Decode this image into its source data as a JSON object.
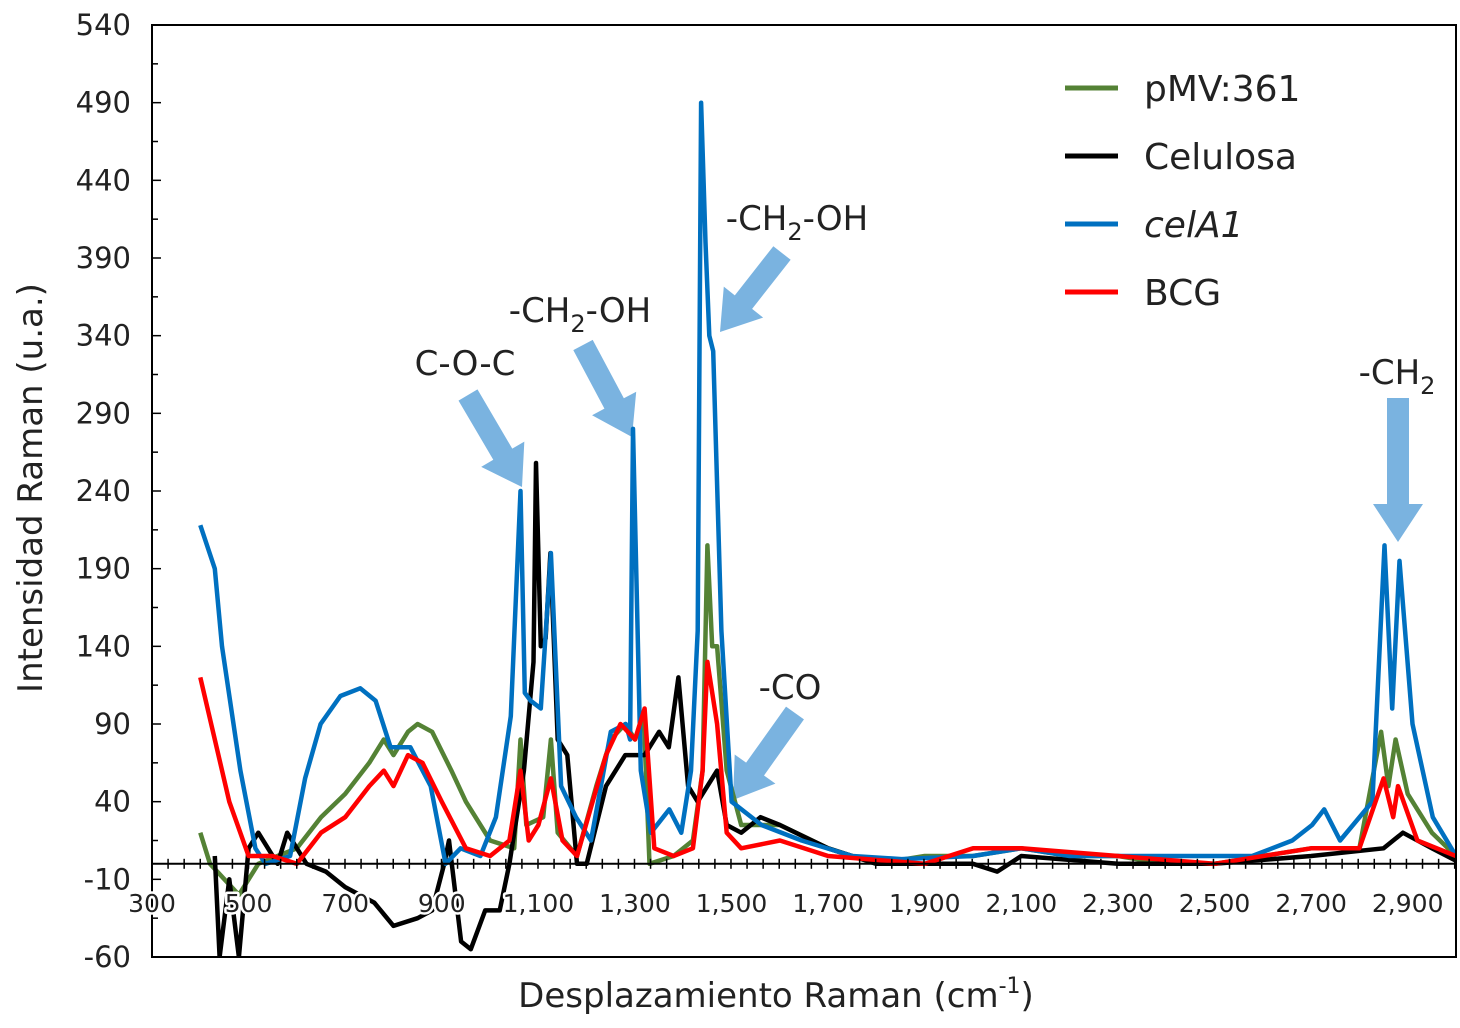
{
  "chart_data": {
    "type": "line",
    "title": "",
    "xlabel": {
      "main": "Desplazamiento Raman (cm",
      "sup": "-1",
      "tail": ")"
    },
    "ylabel": "Intensidad Raman (u.a.)",
    "xlim": [
      300,
      3000
    ],
    "ylim": [
      -60,
      540
    ],
    "x_ticks": [
      300,
      500,
      700,
      900,
      1100,
      1300,
      1500,
      1700,
      1900,
      2100,
      2300,
      2500,
      2700,
      2900
    ],
    "x_tick_labels": [
      "300",
      "500",
      "700",
      "900",
      "1,100",
      "1,300",
      "1,500",
      "1,700",
      "1,900",
      "2,100",
      "2,300",
      "2,500",
      "2,700",
      "2,900"
    ],
    "y_ticks": [
      -60,
      -10,
      40,
      90,
      140,
      190,
      240,
      290,
      340,
      390,
      440,
      490,
      540
    ],
    "y_tick_labels": [
      "-60",
      "-10",
      "40",
      "90",
      "140",
      "190",
      "240",
      "290",
      "340",
      "390",
      "440",
      "490",
      "540"
    ],
    "grid": false,
    "legend_position": "top-right",
    "series": [
      {
        "name": "pMV:361",
        "color": "#548235",
        "italic": false,
        "x": [
          400,
          420,
          450,
          480,
          520,
          560,
          600,
          650,
          700,
          750,
          780,
          800,
          830,
          850,
          880,
          920,
          950,
          1000,
          1050,
          1063,
          1075,
          1110,
          1126,
          1140,
          1180,
          1220,
          1250,
          1280,
          1300,
          1318,
          1330,
          1380,
          1420,
          1440,
          1450,
          1460,
          1470,
          1490,
          1520,
          1600,
          1700,
          1800,
          1900,
          2000,
          2100,
          2200,
          2300,
          2400,
          2500,
          2600,
          2700,
          2800,
          2845,
          2860,
          2875,
          2900,
          2950,
          3000
        ],
        "y": [
          20,
          0,
          -10,
          -20,
          0,
          5,
          10,
          30,
          45,
          65,
          80,
          70,
          85,
          90,
          85,
          60,
          40,
          15,
          10,
          80,
          25,
          30,
          80,
          20,
          5,
          50,
          80,
          90,
          80,
          95,
          0,
          5,
          15,
          60,
          205,
          140,
          140,
          60,
          25,
          25,
          10,
          0,
          5,
          5,
          10,
          5,
          5,
          0,
          0,
          5,
          10,
          10,
          85,
          50,
          80,
          45,
          20,
          5
        ]
      },
      {
        "name": "Celulosa",
        "color": "#000000",
        "italic": false,
        "x": [
          430,
          440,
          460,
          480,
          500,
          520,
          560,
          580,
          620,
          660,
          700,
          760,
          800,
          850,
          880,
          905,
          915,
          940,
          960,
          990,
          1020,
          1040,
          1070,
          1090,
          1095,
          1105,
          1115,
          1125,
          1140,
          1160,
          1180,
          1200,
          1240,
          1280,
          1320,
          1350,
          1370,
          1390,
          1410,
          1430,
          1450,
          1470,
          1490,
          1520,
          1560,
          1600,
          1700,
          1800,
          1900,
          2000,
          2050,
          2100,
          2300,
          2500,
          2700,
          2850,
          2890,
          2950,
          3000
        ],
        "y": [
          5,
          -60,
          -10,
          -60,
          10,
          20,
          0,
          20,
          0,
          -5,
          -15,
          -25,
          -40,
          -35,
          -30,
          0,
          15,
          -50,
          -55,
          -30,
          -30,
          0,
          60,
          130,
          258,
          140,
          145,
          200,
          80,
          70,
          0,
          0,
          50,
          70,
          70,
          85,
          75,
          120,
          50,
          40,
          50,
          60,
          25,
          20,
          30,
          25,
          10,
          0,
          0,
          0,
          -5,
          5,
          0,
          0,
          5,
          10,
          20,
          10,
          2
        ]
      },
      {
        "name": "celA1",
        "color": "#0070c0",
        "italic": true,
        "x": [
          400,
          430,
          445,
          483,
          514,
          535,
          586,
          617,
          649,
          690,
          731,
          763,
          794,
          835,
          877,
          908,
          939,
          980,
          1012,
          1043,
          1063,
          1072,
          1084,
          1105,
          1126,
          1147,
          1178,
          1209,
          1250,
          1281,
          1290,
          1296,
          1312,
          1333,
          1371,
          1396,
          1416,
          1430,
          1437,
          1446,
          1454,
          1462,
          1479,
          1500,
          1562,
          1645,
          1750,
          1852,
          2000,
          2100,
          2200,
          2400,
          2578,
          2661,
          2702,
          2727,
          2760,
          2827,
          2852,
          2868,
          2883,
          2910,
          2952,
          3000
        ],
        "y": [
          218,
          190,
          140,
          60,
          10,
          0,
          5,
          55,
          90,
          108,
          113,
          105,
          75,
          75,
          50,
          0,
          10,
          5,
          30,
          95,
          240,
          110,
          105,
          100,
          200,
          50,
          30,
          15,
          85,
          90,
          80,
          280,
          60,
          20,
          35,
          20,
          60,
          150,
          490,
          400,
          340,
          330,
          150,
          40,
          25,
          15,
          5,
          3,
          5,
          10,
          5,
          5,
          5,
          15,
          25,
          35,
          15,
          40,
          205,
          100,
          195,
          90,
          30,
          5
        ]
      },
      {
        "name": "BCG",
        "color": "#ff0000",
        "italic": false,
        "x": [
          400,
          430,
          460,
          500,
          550,
          600,
          650,
          700,
          750,
          780,
          800,
          830,
          860,
          900,
          950,
          1000,
          1040,
          1063,
          1080,
          1100,
          1126,
          1150,
          1180,
          1240,
          1270,
          1300,
          1320,
          1340,
          1380,
          1420,
          1440,
          1450,
          1470,
          1490,
          1520,
          1600,
          1700,
          1900,
          2000,
          2100,
          2300,
          2500,
          2700,
          2800,
          2850,
          2870,
          2880,
          2920,
          3000
        ],
        "y": [
          120,
          80,
          40,
          5,
          5,
          0,
          20,
          30,
          50,
          60,
          50,
          70,
          65,
          40,
          10,
          5,
          15,
          60,
          15,
          25,
          55,
          15,
          5,
          70,
          90,
          80,
          100,
          10,
          5,
          10,
          60,
          130,
          90,
          20,
          10,
          15,
          5,
          0,
          10,
          10,
          5,
          0,
          10,
          10,
          55,
          30,
          50,
          15,
          5
        ]
      }
    ],
    "annotations": [
      {
        "main": "C-O-C",
        "sub": "",
        "tail": ""
      },
      {
        "main": "-CH",
        "sub": "2",
        "tail": "-OH"
      },
      {
        "main": "-CH",
        "sub": "2",
        "tail": "-OH"
      },
      {
        "main": "-CO",
        "sub": "",
        "tail": ""
      },
      {
        "main": "-CH",
        "sub": "2",
        "tail": ""
      }
    ],
    "arrow_color": "#7ab3e0"
  }
}
